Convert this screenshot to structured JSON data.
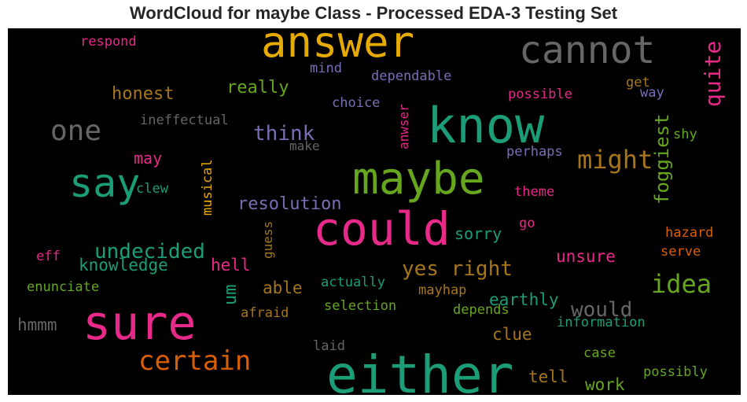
{
  "chart_data": {
    "type": "wordcloud",
    "title": "WordCloud for maybe Class - Processed EDA-3 Testing Set",
    "background": "#000000",
    "colormap": "Dark2",
    "words": [
      {
        "text": "answer",
        "color": "#e6ab02"
      },
      {
        "text": "cannot",
        "color": "#666666"
      },
      {
        "text": "know",
        "color": "#1b9e77"
      },
      {
        "text": "maybe",
        "color": "#66a61e"
      },
      {
        "text": "say",
        "color": "#1b9e77"
      },
      {
        "text": "one",
        "color": "#666666"
      },
      {
        "text": "could",
        "color": "#e7298a"
      },
      {
        "text": "sure",
        "color": "#e7298a"
      },
      {
        "text": "either",
        "color": "#1b9e77"
      },
      {
        "text": "certain",
        "color": "#d95f02"
      },
      {
        "text": "might",
        "color": "#a6761d"
      },
      {
        "text": "idea",
        "color": "#66a61e"
      },
      {
        "text": "quite",
        "color": "#e7298a"
      },
      {
        "text": "foggiest",
        "color": "#66a61e"
      },
      {
        "text": "undecided",
        "color": "#1b9e77"
      },
      {
        "text": "yes right",
        "color": "#a6761d"
      },
      {
        "text": "would",
        "color": "#666666"
      },
      {
        "text": "resolution",
        "color": "#7570b3"
      },
      {
        "text": "think",
        "color": "#7570b3"
      },
      {
        "text": "really",
        "color": "#66a61e"
      },
      {
        "text": "honest",
        "color": "#a6761d"
      },
      {
        "text": "knowledge",
        "color": "#1b9e77"
      },
      {
        "text": "unsure",
        "color": "#e7298a"
      },
      {
        "text": "earthly",
        "color": "#1b9e77"
      },
      {
        "text": "um",
        "color": "#1b9e77"
      },
      {
        "text": "hell",
        "color": "#e7298a"
      },
      {
        "text": "sorry",
        "color": "#1b9e77"
      },
      {
        "text": "able",
        "color": "#a6761d"
      },
      {
        "text": "clue",
        "color": "#a6761d"
      },
      {
        "text": "tell",
        "color": "#a6761d"
      },
      {
        "text": "work",
        "color": "#66a61e"
      },
      {
        "text": "hmmm",
        "color": "#666666"
      },
      {
        "text": "respond",
        "color": "#e7298a"
      },
      {
        "text": "ineffectual",
        "color": "#666666"
      },
      {
        "text": "mind",
        "color": "#7570b3"
      },
      {
        "text": "dependable",
        "color": "#7570b3"
      },
      {
        "text": "choice",
        "color": "#7570b3"
      },
      {
        "text": "possible",
        "color": "#e7298a"
      },
      {
        "text": "get",
        "color": "#a6761d"
      },
      {
        "text": "way",
        "color": "#7570b3"
      },
      {
        "text": "shy",
        "color": "#66a61e"
      },
      {
        "text": "make",
        "color": "#666666"
      },
      {
        "text": "perhaps",
        "color": "#7570b3"
      },
      {
        "text": "anwser",
        "color": "#e7298a"
      },
      {
        "text": "may",
        "color": "#e7298a"
      },
      {
        "text": "musical",
        "color": "#e6ab02"
      },
      {
        "text": "clew",
        "color": "#1b9e77"
      },
      {
        "text": "theme",
        "color": "#e7298a"
      },
      {
        "text": "go",
        "color": "#e7298a"
      },
      {
        "text": "guess",
        "color": "#a6761d"
      },
      {
        "text": "hazard",
        "color": "#d95f02"
      },
      {
        "text": "serve",
        "color": "#d95f02"
      },
      {
        "text": "eff",
        "color": "#e7298a"
      },
      {
        "text": "enunciate",
        "color": "#66a61e"
      },
      {
        "text": "actually",
        "color": "#1b9e77"
      },
      {
        "text": "mayhap",
        "color": "#a6761d"
      },
      {
        "text": "selection",
        "color": "#66a61e"
      },
      {
        "text": "afraid",
        "color": "#a6761d"
      },
      {
        "text": "depends",
        "color": "#66a61e"
      },
      {
        "text": "information",
        "color": "#1b9e77"
      },
      {
        "text": "laid",
        "color": "#666666"
      },
      {
        "text": "case",
        "color": "#66a61e"
      },
      {
        "text": "possibly",
        "color": "#66a61e"
      }
    ]
  }
}
